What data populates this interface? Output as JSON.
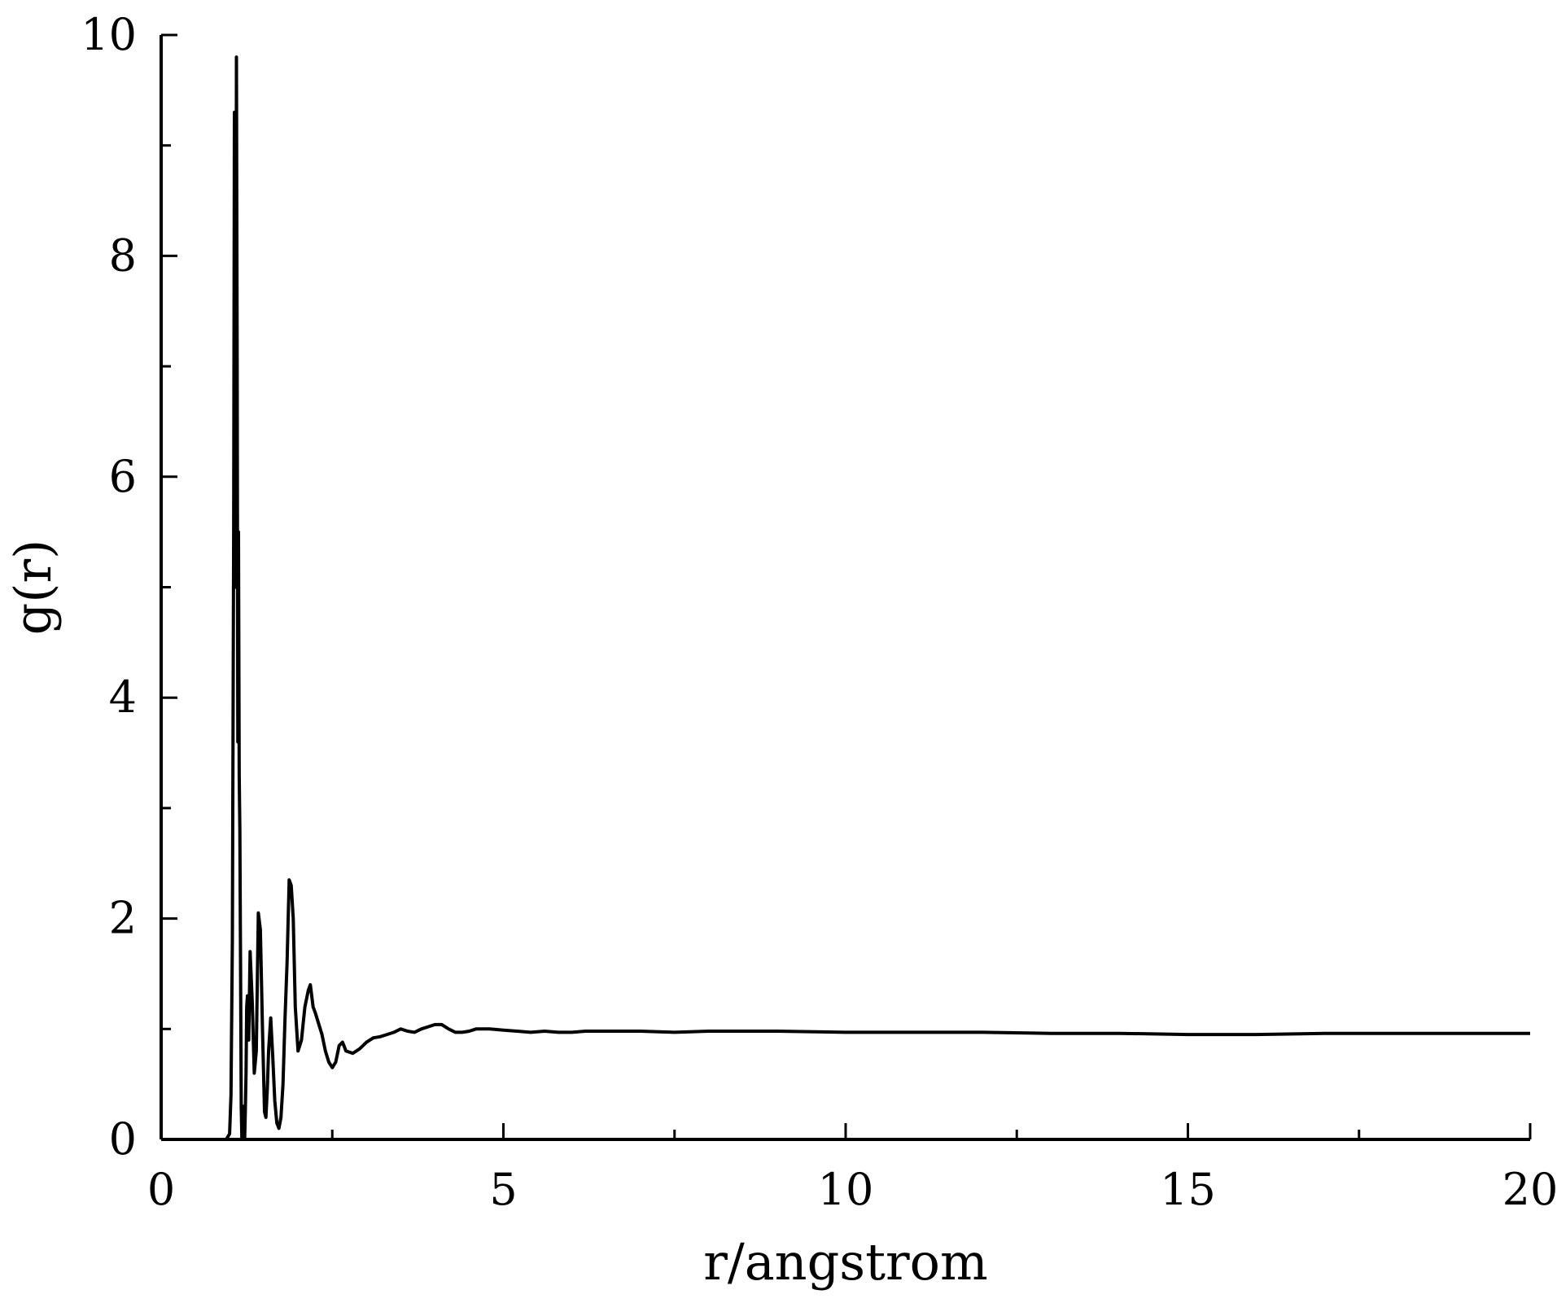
{
  "chart_data": {
    "type": "line",
    "xlabel": "r/angstrom",
    "ylabel": "g(r)",
    "xlim": [
      0,
      20
    ],
    "ylim": [
      0,
      10
    ],
    "x_ticks": [
      0,
      5,
      10,
      15,
      20
    ],
    "y_ticks": [
      0,
      2,
      4,
      6,
      8,
      10
    ],
    "x_tick_labels": [
      "0",
      "5",
      "10",
      "15",
      "20"
    ],
    "y_tick_labels": [
      "0",
      "2",
      "4",
      "6",
      "8",
      "10"
    ],
    "grid": false,
    "line_color": "#000000",
    "series": [
      {
        "x": [
          0.0,
          0.5,
          0.95,
          1.0,
          1.02,
          1.04,
          1.06,
          1.07,
          1.08,
          1.09,
          1.1,
          1.11,
          1.12,
          1.13,
          1.14,
          1.15,
          1.16,
          1.17,
          1.18,
          1.19,
          1.2,
          1.21,
          1.22,
          1.23,
          1.24,
          1.25,
          1.26,
          1.27,
          1.28,
          1.3,
          1.33,
          1.36,
          1.39,
          1.42,
          1.45,
          1.48,
          1.51,
          1.53,
          1.55,
          1.57,
          1.6,
          1.63,
          1.66,
          1.69,
          1.72,
          1.75,
          1.78,
          1.81,
          1.84,
          1.87,
          1.9,
          1.93,
          1.96,
          2.0,
          2.05,
          2.1,
          2.15,
          2.18,
          2.2,
          2.22,
          2.25,
          2.3,
          2.35,
          2.4,
          2.45,
          2.5,
          2.55,
          2.6,
          2.65,
          2.7,
          2.8,
          2.9,
          3.0,
          3.1,
          3.2,
          3.3,
          3.4,
          3.5,
          3.6,
          3.7,
          3.8,
          3.9,
          4.0,
          4.1,
          4.2,
          4.3,
          4.4,
          4.5,
          4.6,
          4.7,
          4.8,
          5.0,
          5.2,
          5.4,
          5.6,
          5.8,
          6.0,
          6.2,
          6.5,
          7.0,
          7.5,
          8.0,
          9.0,
          10.0,
          11.0,
          12.0,
          13.0,
          14.0,
          15.0,
          16.0,
          17.0,
          18.0,
          19.0,
          19.5,
          20.0
        ],
        "values": [
          0.0,
          0.0,
          0.0,
          0.05,
          0.4,
          1.8,
          5.5,
          9.3,
          7.5,
          5.0,
          9.8,
          7.0,
          3.6,
          5.5,
          3.3,
          2.8,
          1.5,
          0.3,
          0.0,
          0.1,
          0.3,
          0.1,
          0.0,
          0.25,
          0.6,
          1.2,
          1.3,
          1.1,
          0.9,
          1.7,
          1.25,
          0.6,
          0.8,
          2.05,
          1.9,
          1.0,
          0.25,
          0.2,
          0.45,
          0.8,
          1.1,
          0.75,
          0.35,
          0.15,
          0.1,
          0.2,
          0.5,
          1.1,
          1.6,
          2.35,
          2.3,
          2.0,
          1.2,
          0.8,
          0.9,
          1.2,
          1.35,
          1.4,
          1.3,
          1.2,
          1.15,
          1.05,
          0.95,
          0.8,
          0.7,
          0.65,
          0.7,
          0.85,
          0.88,
          0.8,
          0.78,
          0.82,
          0.88,
          0.92,
          0.93,
          0.95,
          0.97,
          1.0,
          0.98,
          0.97,
          1.0,
          1.02,
          1.04,
          1.04,
          1.0,
          0.97,
          0.97,
          0.98,
          1.0,
          1.0,
          1.0,
          0.99,
          0.98,
          0.97,
          0.98,
          0.97,
          0.97,
          0.98,
          0.98,
          0.98,
          0.97,
          0.98,
          0.98,
          0.97,
          0.97,
          0.97,
          0.96,
          0.96,
          0.95,
          0.95,
          0.96,
          0.96,
          0.96,
          0.96,
          0.96
        ]
      }
    ]
  }
}
